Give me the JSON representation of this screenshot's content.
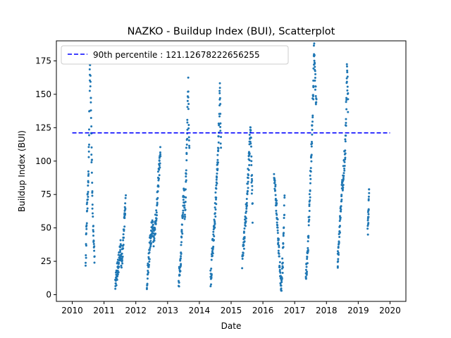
{
  "chart_data": {
    "type": "scatter",
    "title": "NAZKO - Buildup Index (BUI), Scatterplot",
    "xlabel": "Date",
    "ylabel": "Buildup Index (BUI)",
    "xlim": [
      2009.5,
      2020.5
    ],
    "ylim": [
      -5,
      190
    ],
    "xticks": [
      2010,
      2011,
      2012,
      2013,
      2014,
      2015,
      2016,
      2017,
      2018,
      2019,
      2020
    ],
    "yticks": [
      0,
      25,
      50,
      75,
      100,
      125,
      150,
      175
    ],
    "grid": false,
    "legend_position": "top-left",
    "colors": {
      "points": "#1f77b4",
      "reference_line": "#0000ff"
    },
    "reference_line": {
      "label": "90th percentile : 121.12678222656255",
      "y": 121.12678222656255,
      "x_start": 2010,
      "x_end": 2020,
      "style": "dashed"
    },
    "series": [
      {
        "seasons": [
          {
            "year": 2010,
            "start": 2010.42,
            "end": 2010.7,
            "points": [
              [
                0.0,
                24
              ],
              [
                0.08,
                45
              ],
              [
                0.15,
                60
              ],
              [
                0.22,
                75
              ],
              [
                0.3,
                85
              ],
              [
                0.38,
                110
              ],
              [
                0.45,
                150
              ],
              [
                0.5,
                178
              ],
              [
                0.55,
                160
              ],
              [
                0.62,
                130
              ],
              [
                0.7,
                100
              ],
              [
                0.78,
                70
              ],
              [
                0.85,
                50
              ],
              [
                0.92,
                44
              ],
              [
                1.0,
                23
              ]
            ]
          },
          {
            "year": 2011,
            "start": 2011.35,
            "end": 2011.68,
            "points": [
              [
                0.0,
                5
              ],
              [
                0.1,
                12
              ],
              [
                0.2,
                18
              ],
              [
                0.3,
                22
              ],
              [
                0.4,
                28
              ],
              [
                0.5,
                36
              ],
              [
                0.6,
                25
              ],
              [
                0.7,
                30
              ],
              [
                0.8,
                45
              ],
              [
                0.9,
                58
              ],
              [
                1.0,
                74
              ]
            ]
          },
          {
            "year": 2012,
            "start": 2012.35,
            "end": 2012.78,
            "points": [
              [
                0.0,
                10
              ],
              [
                0.1,
                22
              ],
              [
                0.2,
                35
              ],
              [
                0.3,
                45
              ],
              [
                0.4,
                55
              ],
              [
                0.5,
                40
              ],
              [
                0.6,
                50
              ],
              [
                0.7,
                62
              ],
              [
                0.8,
                80
              ],
              [
                0.9,
                95
              ],
              [
                1.0,
                109
              ]
            ]
          },
          {
            "year": 2013,
            "start": 2013.35,
            "end": 2013.68,
            "points": [
              [
                0.0,
                8
              ],
              [
                0.1,
                18
              ],
              [
                0.2,
                28
              ],
              [
                0.3,
                45
              ],
              [
                0.4,
                62
              ],
              [
                0.5,
                78
              ],
              [
                0.6,
                60
              ],
              [
                0.7,
                90
              ],
              [
                0.8,
                120
              ],
              [
                0.9,
                158
              ],
              [
                1.0,
                105
              ]
            ]
          },
          {
            "year": 2014,
            "start": 2014.35,
            "end": 2014.68,
            "points": [
              [
                0.0,
                9
              ],
              [
                0.1,
                20
              ],
              [
                0.2,
                35
              ],
              [
                0.3,
                45
              ],
              [
                0.4,
                55
              ],
              [
                0.5,
                70
              ],
              [
                0.6,
                85
              ],
              [
                0.7,
                100
              ],
              [
                0.8,
                125
              ],
              [
                0.9,
                152
              ],
              [
                1.0,
                110
              ]
            ]
          },
          {
            "year": 2015,
            "start": 2015.35,
            "end": 2015.68,
            "points": [
              [
                0.0,
                25
              ],
              [
                0.1,
                32
              ],
              [
                0.2,
                45
              ],
              [
                0.3,
                55
              ],
              [
                0.4,
                68
              ],
              [
                0.5,
                80
              ],
              [
                0.6,
                95
              ],
              [
                0.7,
                110
              ],
              [
                0.8,
                126
              ],
              [
                0.9,
                90
              ],
              [
                1.0,
                60
              ]
            ]
          },
          {
            "year": 2016,
            "start": 2016.35,
            "end": 2016.68,
            "points": [
              [
                0.0,
                92
              ],
              [
                0.1,
                80
              ],
              [
                0.2,
                70
              ],
              [
                0.3,
                55
              ],
              [
                0.4,
                40
              ],
              [
                0.5,
                28
              ],
              [
                0.6,
                15
              ],
              [
                0.7,
                4
              ],
              [
                0.8,
                20
              ],
              [
                0.9,
                38
              ],
              [
                1.0,
                72
              ]
            ]
          },
          {
            "year": 2017,
            "start": 2017.35,
            "end": 2017.68,
            "points": [
              [
                0.0,
                13
              ],
              [
                0.1,
                22
              ],
              [
                0.2,
                35
              ],
              [
                0.3,
                55
              ],
              [
                0.4,
                75
              ],
              [
                0.5,
                100
              ],
              [
                0.6,
                125
              ],
              [
                0.7,
                150
              ],
              [
                0.8,
                187
              ],
              [
                0.9,
                160
              ],
              [
                1.0,
                140
              ]
            ]
          },
          {
            "year": 2018,
            "start": 2018.35,
            "end": 2018.68,
            "points": [
              [
                0.0,
                23
              ],
              [
                0.1,
                35
              ],
              [
                0.2,
                50
              ],
              [
                0.3,
                65
              ],
              [
                0.4,
                78
              ],
              [
                0.5,
                85
              ],
              [
                0.6,
                95
              ],
              [
                0.7,
                105
              ],
              [
                0.8,
                125
              ],
              [
                0.9,
                172
              ],
              [
                1.0,
                140
              ]
            ]
          },
          {
            "year": 2019,
            "start": 2019.3,
            "end": 2019.34,
            "points": [
              [
                0.0,
                48
              ],
              [
                0.25,
                55
              ],
              [
                0.5,
                62
              ],
              [
                0.75,
                68
              ],
              [
                1.0,
                75
              ]
            ]
          }
        ]
      }
    ]
  }
}
